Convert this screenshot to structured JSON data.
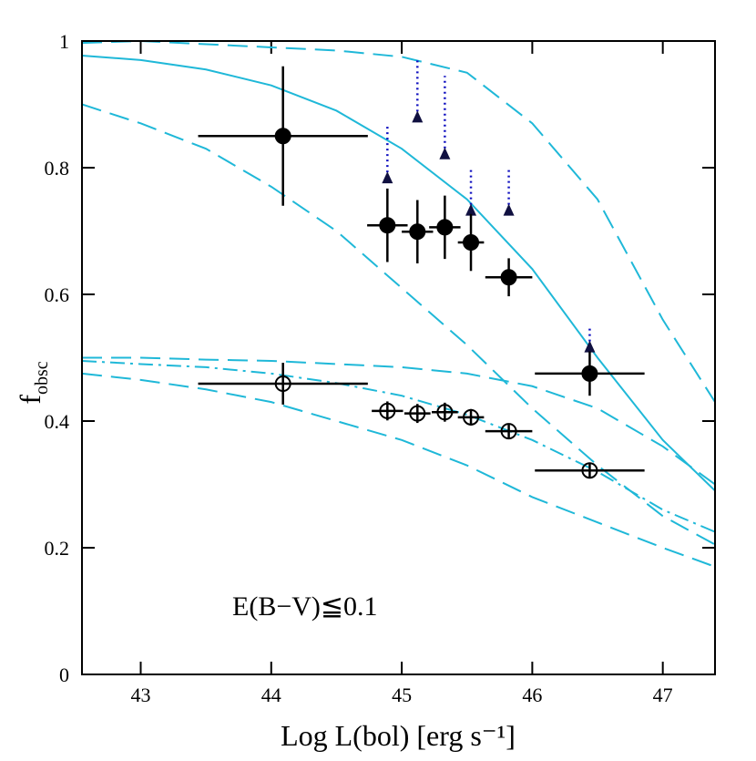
{
  "chart_data": {
    "type": "line",
    "xlabel": "Log L(bol) [erg s⁻¹]",
    "ylabel": "f",
    "ylabel_sub": "obsc",
    "annotation": "E(B−V)≦0.1",
    "xlim": [
      42.55,
      47.4
    ],
    "ylim": [
      0,
      1
    ],
    "xticks": [
      43,
      44,
      45,
      46,
      47
    ],
    "yticks": [
      0,
      0.2,
      0.4,
      0.6,
      0.8,
      1
    ],
    "curve_x": [
      42.55,
      43,
      43.5,
      44,
      44.5,
      45,
      45.5,
      46,
      46.5,
      47,
      47.4
    ],
    "series": [
      {
        "color": "#1fb8d8",
        "dash": "solid",
        "values": [
          0.977,
          0.97,
          0.955,
          0.93,
          0.89,
          0.83,
          0.75,
          0.64,
          0.5,
          0.37,
          0.29
        ]
      },
      {
        "color": "#1fb8d8",
        "dash": "dashed",
        "values": [
          0.997,
          1.0,
          0.995,
          0.99,
          0.985,
          0.975,
          0.95,
          0.87,
          0.75,
          0.56,
          0.43
        ]
      },
      {
        "color": "#1fb8d8",
        "dash": "dashed",
        "values": [
          0.9,
          0.87,
          0.83,
          0.77,
          0.7,
          0.61,
          0.52,
          0.42,
          0.33,
          0.25,
          0.205
        ]
      },
      {
        "color": "#1fb8d8",
        "dash": "dashed",
        "values": [
          0.5,
          0.5,
          0.497,
          0.495,
          0.49,
          0.485,
          0.475,
          0.455,
          0.42,
          0.36,
          0.3
        ]
      },
      {
        "color": "#1fb8d8",
        "dash": "dashdot",
        "values": [
          0.495,
          0.49,
          0.485,
          0.475,
          0.46,
          0.44,
          0.41,
          0.37,
          0.32,
          0.26,
          0.225
        ]
      },
      {
        "color": "#1fb8d8",
        "dash": "dashed",
        "values": [
          0.475,
          0.465,
          0.45,
          0.43,
          0.4,
          0.37,
          0.33,
          0.28,
          0.24,
          0.2,
          0.17
        ]
      }
    ],
    "points": [
      {
        "marker": "filled",
        "color": "#000000",
        "x": [
          44.09,
          44.89,
          45.12,
          45.33,
          45.53,
          45.82,
          46.44
        ],
        "values": [
          0.85,
          0.709,
          0.699,
          0.706,
          0.682,
          0.627,
          0.475
        ],
        "xerr": [
          0.65,
          0.155,
          0.12,
          0.12,
          0.1,
          0.18,
          0.42
        ],
        "yerr": [
          0.11,
          0.058,
          0.05,
          0.05,
          0.045,
          0.03,
          0.035
        ]
      },
      {
        "marker": "open",
        "color": "#000000",
        "x": [
          44.09,
          44.89,
          45.12,
          45.33,
          45.53,
          45.82,
          46.44
        ],
        "values": [
          0.459,
          0.416,
          0.412,
          0.414,
          0.406,
          0.384,
          0.322
        ],
        "xerr": [
          0.65,
          0.12,
          0.1,
          0.1,
          0.1,
          0.18,
          0.42
        ],
        "yerr": [
          0.033,
          0.015,
          0.015,
          0.015,
          0.013,
          0.012,
          0.012
        ]
      }
    ],
    "limits": {
      "color": "#1010c0",
      "x": [
        44.89,
        45.12,
        45.33,
        45.53,
        45.82,
        46.44
      ],
      "values": [
        0.784,
        0.88,
        0.822,
        0.733,
        0.733,
        0.517
      ],
      "upper": [
        0.865,
        0.97,
        0.945,
        0.8,
        0.8,
        0.55
      ]
    }
  }
}
